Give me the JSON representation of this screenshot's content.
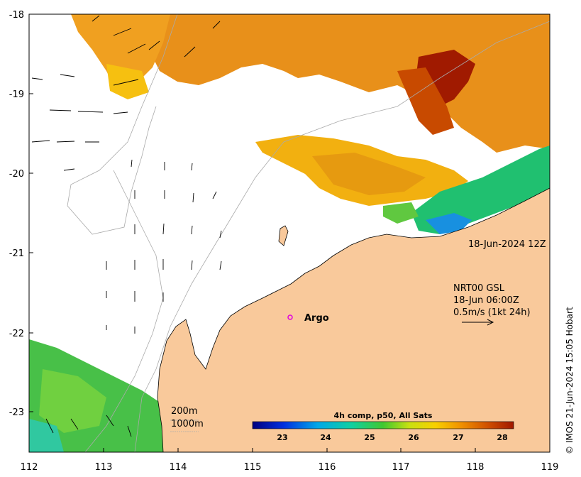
{
  "map": {
    "x_ticks": [
      "112",
      "113",
      "114",
      "115",
      "116",
      "117",
      "118",
      "119"
    ],
    "y_ticks": [
      "-18",
      "-19",
      "-20",
      "-21",
      "-22",
      "-23"
    ],
    "lon_range": [
      112,
      119
    ],
    "lat_range": [
      -23.5,
      -18
    ],
    "ocean_colormap_note": ""
  },
  "annotations": {
    "datetime": "18-Jun-2024 12Z",
    "current_source": "NRT00 GSL",
    "current_time": "18-Jun 06:00Z",
    "current_scale": "0.5m/s (1kt 24h)",
    "argo_label": "Argo",
    "depth_200": "200m",
    "depth_1000": "1000m"
  },
  "colorbar": {
    "title": "4h comp, p50, All Sats",
    "ticks": [
      "23",
      "24",
      "25",
      "26",
      "27",
      "28"
    ],
    "range": [
      22.4,
      28.5
    ]
  },
  "credit": "© IMOS 21-Jun-2024 15:05 Hobart",
  "colors": {
    "land": "#f9c99b",
    "cold": "#0a1a8c",
    "warm": "#8c1400",
    "mid": "#f2b800",
    "green": "#3fbf3f"
  }
}
